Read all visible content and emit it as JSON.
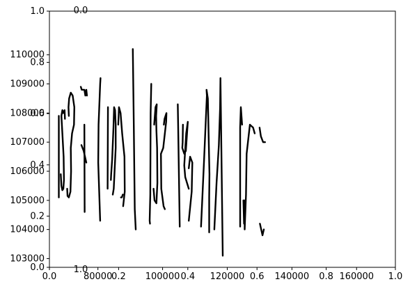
{
  "chart_data": {
    "type": "line",
    "description_visible": "A mostly blank plot area drawn with the numerals 0–9 as handwritten black strokes, with overlapping stray axes",
    "overlapping_axes_labels": {
      "outer_left_ticks": [
        "0.0",
        "0.2",
        "0.4",
        "0.6",
        "0.8",
        "1.0"
      ],
      "outer_bottom_ticks": [
        "0.0",
        "0.2",
        "0.4",
        "0.6",
        "0.8",
        "1.0"
      ],
      "inner_left_ticks": [
        "103000",
        "104000",
        "105000",
        "106000",
        "107000",
        "108000",
        "109000",
        "110000"
      ],
      "inner_bottom_ticks": [
        "80000",
        "100000",
        "120000",
        "140000",
        "160000"
      ],
      "stray_top_tick": "0.0",
      "stray_bottom_tick": "1.0"
    },
    "x_range_inner": [
      65000,
      172000
    ],
    "y_range_inner": [
      102700,
      111500
    ],
    "grid": false,
    "legend": "none",
    "stroke_color": "#000000",
    "strokes": [
      {
        "name": "digit-0",
        "points": [
          [
            67900,
            105100
          ],
          [
            67900,
            107900
          ]
        ]
      },
      {
        "name": "digit-0",
        "points": [
          [
            68500,
            105900
          ],
          [
            68700,
            105500
          ],
          [
            69000,
            105350
          ],
          [
            69300,
            105400
          ],
          [
            69500,
            105700
          ],
          [
            69400,
            106500
          ],
          [
            69000,
            107300
          ],
          [
            68700,
            107900
          ],
          [
            69000,
            108100
          ],
          [
            69300,
            108000
          ],
          [
            69700,
            108100
          ],
          [
            69800,
            107800
          ]
        ]
      },
      {
        "name": "digit-1",
        "points": [
          [
            70500,
            105400
          ],
          [
            70600,
            105150
          ],
          [
            71000,
            105100
          ],
          [
            71500,
            105300
          ],
          [
            71700,
            106000
          ],
          [
            71600,
            106800
          ],
          [
            72000,
            107300
          ],
          [
            72600,
            107600
          ],
          [
            72700,
            108200
          ],
          [
            72200,
            108600
          ],
          [
            71600,
            108700
          ],
          [
            71100,
            108500
          ],
          [
            70900,
            108200
          ],
          [
            71000,
            107900
          ]
        ]
      },
      {
        "name": "digit-2",
        "points": [
          [
            74700,
            108900
          ],
          [
            75000,
            108800
          ],
          [
            75800,
            108800
          ],
          [
            76100,
            108600
          ],
          [
            76400,
            108800
          ],
          [
            76600,
            108600
          ]
        ]
      },
      {
        "name": "digit-2",
        "points": [
          [
            74900,
            106900
          ],
          [
            75600,
            106700
          ],
          [
            76400,
            106300
          ]
        ]
      },
      {
        "name": "digit-2",
        "points": [
          [
            75900,
            104800
          ],
          [
            75900,
            104600
          ],
          [
            75800,
            107600
          ]
        ]
      },
      {
        "name": "digit-3",
        "points": [
          [
            80800,
            109200
          ],
          [
            80700,
            109000
          ],
          [
            80200,
            107600
          ],
          [
            80100,
            106300
          ],
          [
            80700,
            104300
          ]
        ]
      },
      {
        "name": "digit-3",
        "points": [
          [
            83100,
            108200
          ],
          [
            83000,
            105400
          ]
        ]
      },
      {
        "name": "digit-4",
        "points": [
          [
            84000,
            105700
          ],
          [
            84100,
            105900
          ],
          [
            84400,
            106400
          ],
          [
            84800,
            107500
          ],
          [
            85000,
            108200
          ],
          [
            85300,
            108100
          ],
          [
            85500,
            107600
          ],
          [
            85500,
            106800
          ],
          [
            84900,
            105400
          ],
          [
            84600,
            105200
          ]
        ]
      },
      {
        "name": "digit-4",
        "points": [
          [
            87100,
            105100
          ],
          [
            87400,
            105100
          ],
          [
            87700,
            105200
          ]
        ]
      },
      {
        "name": "digit-4",
        "points": [
          [
            86300,
            107600
          ],
          [
            86500,
            108200
          ],
          [
            87000,
            108000
          ],
          [
            87500,
            107300
          ],
          [
            88200,
            106500
          ],
          [
            88300,
            105300
          ],
          [
            87800,
            104800
          ]
        ]
      },
      {
        "name": "digit-5",
        "points": [
          [
            91700,
            104000
          ],
          [
            91400,
            104700
          ],
          [
            91100,
            107600
          ],
          [
            90800,
            110200
          ]
        ]
      },
      {
        "name": "digit-5",
        "points": [
          [
            96100,
            104200
          ],
          [
            96000,
            104300
          ],
          [
            96200,
            105200
          ],
          [
            96300,
            108000
          ],
          [
            96500,
            109000
          ]
        ]
      },
      {
        "name": "digit-6",
        "points": [
          [
            97200,
            105400
          ],
          [
            97500,
            105000
          ],
          [
            98100,
            104900
          ],
          [
            98400,
            105600
          ],
          [
            98300,
            106800
          ],
          [
            98100,
            107400
          ],
          [
            98000,
            107900
          ],
          [
            98200,
            108300
          ],
          [
            97800,
            108200
          ],
          [
            97400,
            107600
          ]
        ]
      },
      {
        "name": "digit-6",
        "points": [
          [
            100700,
            104700
          ],
          [
            100300,
            104800
          ],
          [
            99600,
            105400
          ],
          [
            99500,
            106600
          ],
          [
            100200,
            106800
          ],
          [
            101100,
            107700
          ],
          [
            101200,
            108000
          ],
          [
            100600,
            107800
          ],
          [
            100400,
            107600
          ]
        ]
      },
      {
        "name": "digit-7",
        "points": [
          [
            104700,
            108300
          ],
          [
            104800,
            107600
          ],
          [
            105300,
            104100
          ]
        ]
      },
      {
        "name": "digit-7",
        "points": [
          [
            106300,
            107600
          ],
          [
            106200,
            107000
          ],
          [
            106100,
            106800
          ],
          [
            106700,
            106600
          ],
          [
            107200,
            106700
          ],
          [
            107800,
            107700
          ],
          [
            107300,
            107300
          ],
          [
            106700,
            106200
          ],
          [
            107000,
            105800
          ],
          [
            108100,
            105400
          ]
        ]
      },
      {
        "name": "digit-8",
        "points": [
          [
            108100,
            106100
          ],
          [
            108500,
            106500
          ],
          [
            109200,
            106300
          ],
          [
            109000,
            105300
          ],
          [
            108100,
            104300
          ]
        ]
      },
      {
        "name": "digit-9",
        "points": [
          [
            111900,
            104100
          ],
          [
            112800,
            106300
          ],
          [
            113700,
            108600
          ],
          [
            113600,
            108800
          ],
          [
            114000,
            108500
          ],
          [
            114500,
            105900
          ],
          [
            114400,
            105100
          ],
          [
            114400,
            103900
          ]
        ]
      },
      {
        "name": "digit-9",
        "points": [
          [
            116000,
            104000
          ],
          [
            116700,
            105600
          ],
          [
            117400,
            106900
          ],
          [
            117800,
            108200
          ],
          [
            117900,
            109200
          ],
          [
            118600,
            103100
          ]
        ]
      },
      {
        "name": "digit-0b",
        "points": [
          [
            124000,
            104100
          ],
          [
            124000,
            107500
          ],
          [
            124200,
            108200
          ],
          [
            124600,
            107600
          ]
        ]
      },
      {
        "name": "digit-1b",
        "points": [
          [
            125000,
            105000
          ],
          [
            125200,
            104200
          ],
          [
            125300,
            104900
          ],
          [
            125300,
            105000
          ],
          [
            125400,
            104300
          ],
          [
            125400,
            104000
          ],
          [
            125800,
            105200
          ],
          [
            126000,
            106600
          ],
          [
            127000,
            107600
          ],
          [
            128000,
            107500
          ],
          [
            128500,
            107300
          ]
        ]
      },
      {
        "name": "digit-2b",
        "points": [
          [
            130100,
            104200
          ],
          [
            130900,
            103800
          ],
          [
            131300,
            104000
          ]
        ]
      },
      {
        "name": "digit-2b",
        "points": [
          [
            130000,
            107500
          ],
          [
            130400,
            107200
          ],
          [
            131100,
            107000
          ],
          [
            131700,
            107000
          ]
        ]
      }
    ]
  }
}
